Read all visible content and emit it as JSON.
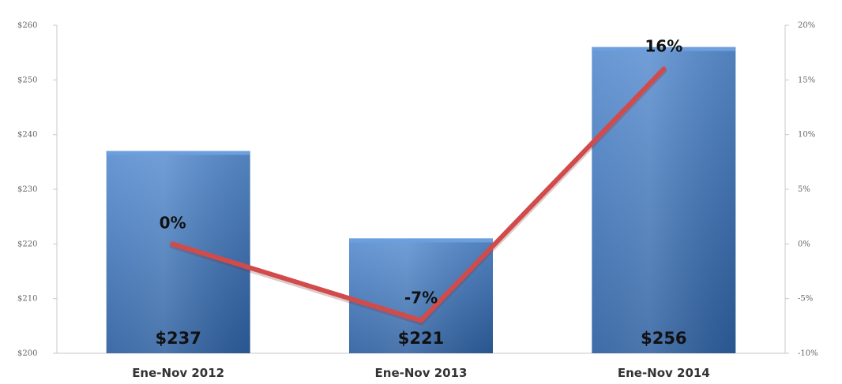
{
  "chart_data": {
    "type": "bar",
    "title": "",
    "categories": [
      "Ene-Nov 2012",
      "Ene-Nov 2013",
      "Ene-Nov 2014"
    ],
    "series": [
      {
        "type": "bar",
        "axis": "left",
        "values": [
          237,
          221,
          256
        ],
        "labels": [
          "$237",
          "$221",
          "$256"
        ]
      },
      {
        "type": "line",
        "axis": "right",
        "values": [
          0,
          -7,
          16
        ],
        "labels": [
          "0%",
          "-7%",
          "16%"
        ]
      }
    ],
    "y_left": {
      "min": 200,
      "max": 260,
      "ticks": [
        200,
        210,
        220,
        230,
        240,
        250,
        260
      ],
      "tick_labels": [
        "$200",
        "$210",
        "$220",
        "$230",
        "$240",
        "$250",
        "$260"
      ]
    },
    "y_right": {
      "min": -10,
      "max": 20,
      "ticks": [
        -10,
        -5,
        0,
        5,
        10,
        15,
        20
      ],
      "tick_labels": [
        "-10%",
        "-5%",
        "0%",
        "5%",
        "10%",
        "15%",
        "20%"
      ]
    },
    "grid": false,
    "legend": "none",
    "colors": {
      "bar_top": "#5b8fd1",
      "bar_bottom": "#2e5f9f",
      "line": "#d24b4b",
      "axis": "#c8c8c8"
    }
  }
}
